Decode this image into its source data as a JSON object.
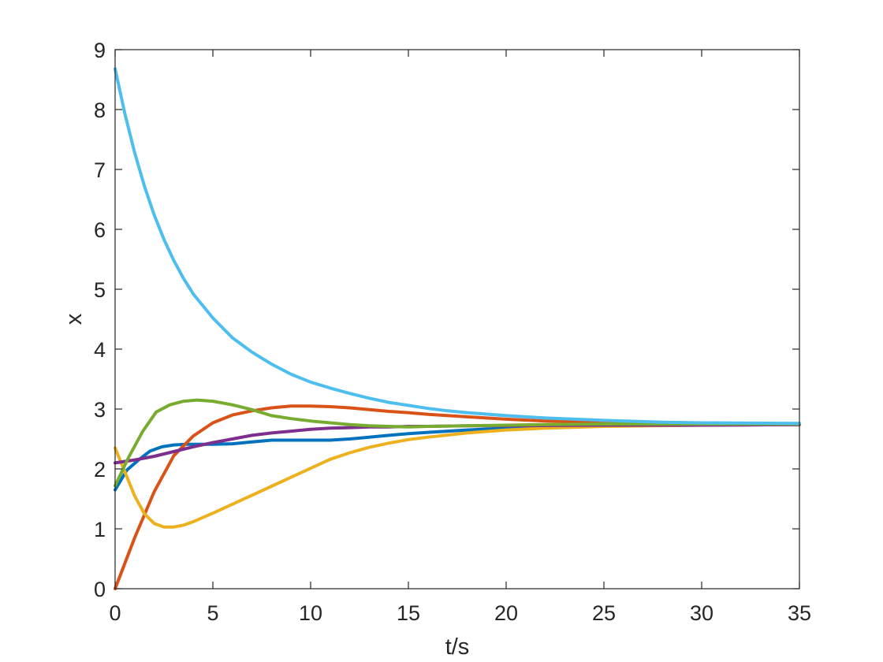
{
  "chart_data": {
    "type": "line",
    "xlabel": "t/s",
    "ylabel": "x",
    "xlim": [
      0,
      35
    ],
    "ylim": [
      0,
      9
    ],
    "xticks": [
      0,
      5,
      10,
      15,
      20,
      25,
      30,
      35
    ],
    "yticks": [
      0,
      1,
      2,
      3,
      4,
      5,
      6,
      7,
      8,
      9
    ],
    "grid": false,
    "legend": "none",
    "series": [
      {
        "color": "#0072BD",
        "x": [
          0,
          0.6,
          1.2,
          1.8,
          2.4,
          3,
          3.6,
          4.2,
          5,
          6,
          7,
          8,
          9,
          10,
          11,
          12,
          13,
          14,
          15,
          16,
          18,
          20,
          22,
          25,
          30,
          35
        ],
        "y": [
          1.65,
          1.98,
          2.15,
          2.3,
          2.37,
          2.4,
          2.41,
          2.41,
          2.41,
          2.42,
          2.45,
          2.48,
          2.48,
          2.48,
          2.48,
          2.5,
          2.53,
          2.56,
          2.59,
          2.61,
          2.65,
          2.68,
          2.7,
          2.72,
          2.73,
          2.74
        ]
      },
      {
        "color": "#D95319",
        "x": [
          0,
          1,
          2,
          3,
          4,
          5,
          6,
          7,
          8,
          9,
          10,
          11,
          12,
          13,
          14,
          15,
          16,
          18,
          20,
          22,
          25,
          30,
          35
        ],
        "y": [
          0.0,
          0.85,
          1.62,
          2.22,
          2.55,
          2.77,
          2.9,
          2.97,
          3.02,
          3.05,
          3.05,
          3.04,
          3.02,
          2.99,
          2.96,
          2.94,
          2.91,
          2.87,
          2.83,
          2.8,
          2.78,
          2.75,
          2.74
        ]
      },
      {
        "color": "#EDB120",
        "x": [
          0,
          0.5,
          1,
          1.5,
          2,
          2.5,
          3,
          3.5,
          4,
          5,
          6,
          7,
          8,
          9,
          10,
          11,
          12,
          13,
          14,
          15,
          16,
          18,
          20,
          22,
          25,
          30,
          35
        ],
        "y": [
          2.35,
          1.95,
          1.55,
          1.25,
          1.09,
          1.03,
          1.03,
          1.06,
          1.12,
          1.26,
          1.41,
          1.56,
          1.71,
          1.86,
          2.01,
          2.16,
          2.27,
          2.36,
          2.43,
          2.49,
          2.53,
          2.6,
          2.65,
          2.68,
          2.71,
          2.73,
          2.74
        ]
      },
      {
        "color": "#7E2F8E",
        "x": [
          0,
          1,
          2,
          3,
          4,
          5,
          6,
          7,
          8,
          9,
          10,
          11,
          12,
          13,
          14,
          15,
          16,
          18,
          20,
          25,
          30,
          35
        ],
        "y": [
          2.1,
          2.15,
          2.21,
          2.29,
          2.37,
          2.44,
          2.5,
          2.56,
          2.6,
          2.63,
          2.66,
          2.68,
          2.69,
          2.7,
          2.7,
          2.71,
          2.71,
          2.72,
          2.72,
          2.73,
          2.73,
          2.74
        ]
      },
      {
        "color": "#77AC30",
        "x": [
          0,
          0.7,
          1.4,
          2.1,
          2.8,
          3.5,
          4.2,
          5,
          6,
          7,
          8,
          9,
          10,
          11,
          12,
          13,
          14,
          15,
          16,
          18,
          20,
          22,
          25,
          30,
          35
        ],
        "y": [
          1.72,
          2.2,
          2.62,
          2.95,
          3.07,
          3.13,
          3.15,
          3.13,
          3.07,
          2.99,
          2.89,
          2.84,
          2.8,
          2.77,
          2.74,
          2.72,
          2.71,
          2.7,
          2.71,
          2.72,
          2.73,
          2.74,
          2.75,
          2.75,
          2.75
        ]
      },
      {
        "color": "#4DBEEE",
        "x": [
          0,
          0.5,
          1,
          1.5,
          2,
          2.5,
          3,
          3.5,
          4,
          5,
          6,
          7,
          8,
          9,
          10,
          11,
          12,
          13,
          14,
          15,
          16,
          17,
          18,
          20,
          22,
          25,
          28,
          30,
          35
        ],
        "y": [
          8.68,
          7.93,
          7.28,
          6.72,
          6.24,
          5.83,
          5.48,
          5.18,
          4.92,
          4.52,
          4.19,
          3.95,
          3.75,
          3.58,
          3.45,
          3.35,
          3.26,
          3.18,
          3.11,
          3.06,
          3.01,
          2.97,
          2.94,
          2.89,
          2.85,
          2.81,
          2.78,
          2.77,
          2.76
        ]
      }
    ]
  }
}
